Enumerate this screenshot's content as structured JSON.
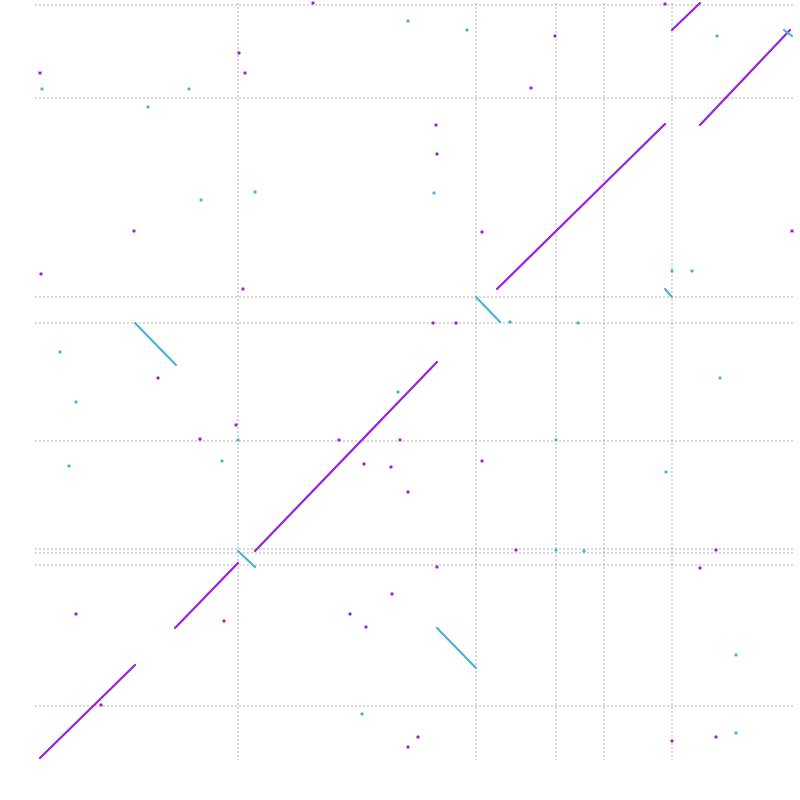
{
  "chart_data": {
    "type": "dotplot",
    "xlim": [
      0,
      760
    ],
    "ylim": [
      0,
      757
    ],
    "xticks": [
      203,
      441,
      521,
      569,
      637
    ],
    "yticks": [
      54,
      195,
      207,
      211,
      319,
      437,
      463,
      662,
      755
    ],
    "grid": true,
    "series": [
      {
        "color": "#9b1fd8",
        "segments": [
          [
            5,
            2,
            100,
            95
          ],
          [
            140,
            132,
            203,
            197
          ],
          [
            220,
            209,
            402,
            398
          ],
          [
            462,
            471,
            630,
            636
          ],
          [
            637,
            730,
            665,
            757
          ],
          [
            665,
            635,
            755,
            730
          ]
        ],
        "x": [
          5,
          6,
          99,
          123,
          165,
          201,
          208,
          204,
          210,
          278,
          401,
          402,
          447,
          447,
          496,
          520,
          630,
          757,
          681,
          665,
          373,
          357,
          315,
          331,
          41,
          189,
          66,
          373,
          383,
          637,
          681,
          398,
          421,
          481,
          402,
          356,
          304,
          329,
          365
        ],
        "y": [
          687,
          486,
          529,
          382,
          321,
          335,
          471,
          707,
          687,
          757,
          635,
          606,
          528,
          299,
          672,
          724,
          756,
          529,
          210,
          192,
          268,
          166,
          146,
          133,
          146,
          139,
          55,
          13,
          23,
          19,
          23,
          437,
          437,
          210,
          193,
          293,
          320,
          296,
          320
        ]
      },
      {
        "color": "#4ab3d8",
        "segments": [
          [
            100,
            437,
            141,
            395
          ],
          [
            402,
            132,
            441,
            92
          ],
          [
            441,
            463,
            465,
            438
          ],
          [
            203,
            209,
            220,
            193
          ],
          [
            630,
            471,
            637,
            463
          ],
          [
            749,
            730,
            757,
            724
          ]
        ],
        "x": [
          432,
          373,
          154,
          113,
          166,
          220,
          399,
          7,
          25,
          41,
          34,
          187,
          203,
          685,
          631,
          637,
          657,
          682,
          701,
          701,
          327,
          521,
          549,
          521,
          363,
          475,
          543
        ],
        "y": [
          730,
          739,
          671,
          653,
          560,
          568,
          567,
          671,
          408,
          358,
          294,
          299,
          320,
          382,
          288,
          489,
          489,
          724,
          105,
          27,
          46,
          320,
          209,
          210,
          368,
          438,
          437
        ]
      }
    ]
  }
}
